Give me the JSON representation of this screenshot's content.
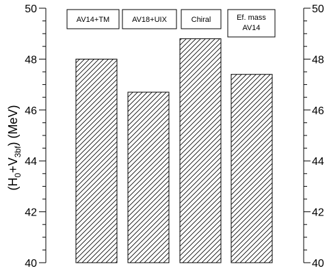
{
  "chart_data": {
    "type": "bar",
    "categories": [
      "AV14+TM",
      "AV18+UIX",
      "Chiral",
      "Ef. mass AV14"
    ],
    "category_lines": [
      [
        "AV14+TM"
      ],
      [
        "AV18+UIX"
      ],
      [
        "Chiral"
      ],
      [
        "Ef. mass",
        "AV14"
      ]
    ],
    "values": [
      48.0,
      46.7,
      48.8,
      47.4
    ],
    "ylim": [
      40,
      50
    ],
    "yticks": [
      40,
      42,
      44,
      46,
      48,
      50
    ],
    "ylabel": {
      "main": "(H",
      "sub0": "0",
      "plus": "+V",
      "sub1": "3bf",
      "unit": ") (MeV)"
    },
    "bar_pattern": "diagonal-hatch",
    "right_axis_mirror": true,
    "grid": false
  }
}
